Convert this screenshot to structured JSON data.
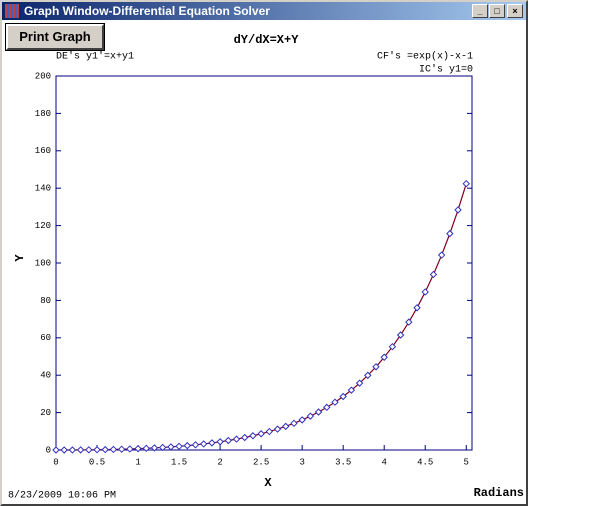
{
  "window": {
    "title": "Graph Window-Differential Equation Solver",
    "button": "Print Graph",
    "timestamp": "8/23/2009 10:06 PM"
  },
  "chart_data": {
    "type": "line",
    "title": "dY/dX=X+Y",
    "annotations": [
      "DE's y1'=x+y1",
      "CF's =exp(x)-x-1",
      "IC's y1=0"
    ],
    "x_label": "X",
    "x_unit": "Radians",
    "y_label": "Y",
    "x": [
      0,
      0.1,
      0.2,
      0.3,
      0.4,
      0.5,
      0.6,
      0.7,
      0.8,
      0.9,
      1.0,
      1.1,
      1.2,
      1.3,
      1.4,
      1.5,
      1.6,
      1.7,
      1.8,
      1.9,
      2.0,
      2.1,
      2.2,
      2.3,
      2.4,
      2.5,
      2.6,
      2.7,
      2.8,
      2.9,
      3.0,
      3.1,
      3.2,
      3.3,
      3.4,
      3.5,
      3.6,
      3.7,
      3.8,
      3.9,
      4.0,
      4.1,
      4.2,
      4.3,
      4.4,
      4.5,
      4.6,
      4.7,
      4.8,
      4.9,
      5.0
    ],
    "series": [
      {
        "name": "y1",
        "color": "#800020",
        "marker_color": "#3030c0",
        "values": [
          0,
          0.01,
          0.02,
          0.05,
          0.09,
          0.15,
          0.22,
          0.31,
          0.43,
          0.56,
          0.72,
          0.9,
          1.12,
          1.37,
          1.66,
          1.98,
          2.35,
          2.77,
          3.25,
          3.79,
          4.39,
          5.07,
          5.83,
          6.67,
          7.62,
          8.68,
          9.86,
          11.18,
          12.64,
          14.27,
          16.09,
          18.1,
          20.33,
          22.81,
          25.56,
          28.62,
          32.0,
          35.75,
          39.9,
          44.5,
          49.6,
          55.24,
          61.49,
          68.4,
          76.05,
          84.52,
          93.88,
          104.25,
          115.71,
          128.39,
          142.41
        ]
      }
    ],
    "xlim": [
      0,
      5.07
    ],
    "xticks": [
      0,
      0.5,
      1,
      1.5,
      2,
      2.5,
      3,
      3.5,
      4,
      4.5,
      5
    ],
    "ylim": [
      0,
      200
    ],
    "yticks": [
      0,
      20,
      40,
      60,
      80,
      100,
      120,
      140,
      160,
      180,
      200
    ],
    "axis_color": "#000080"
  }
}
